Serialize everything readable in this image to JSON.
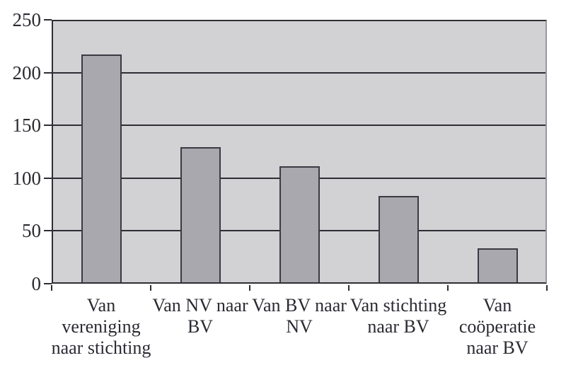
{
  "figure": {
    "description": "Bar chart of legal-entity conversions (Dutch labels)"
  },
  "chart_data": {
    "type": "bar",
    "title": "",
    "xlabel": "",
    "ylabel": "",
    "categories": [
      "Van vereniging naar stichting",
      "Van NV naar BV",
      "Van BV naar NV",
      "Van stichting naar BV",
      "Van coöperatie naar BV"
    ],
    "category_lines": [
      [
        "Van",
        "vereniging",
        "naar stichting"
      ],
      [
        "Van NV naar",
        "BV"
      ],
      [
        "Van BV naar",
        "NV"
      ],
      [
        "Van stichting",
        "naar BV"
      ],
      [
        "Van",
        "coöperatie",
        "naar BV"
      ]
    ],
    "values": [
      216,
      128,
      110,
      82,
      32
    ],
    "ylim": [
      0,
      250
    ],
    "yticks": [
      0,
      50,
      100,
      150,
      200,
      250
    ],
    "grid": true,
    "legend": false,
    "colors": {
      "page_background": "#ffffff",
      "plot_background": "#d2d1d4",
      "bar_fill": "#a9a8ae",
      "bar_border": "#3a3a42",
      "gridline": "#2e2e34",
      "axis_line": "#2e2e34",
      "plot_right_border": "#97979d",
      "text": "#2b2a32"
    }
  }
}
